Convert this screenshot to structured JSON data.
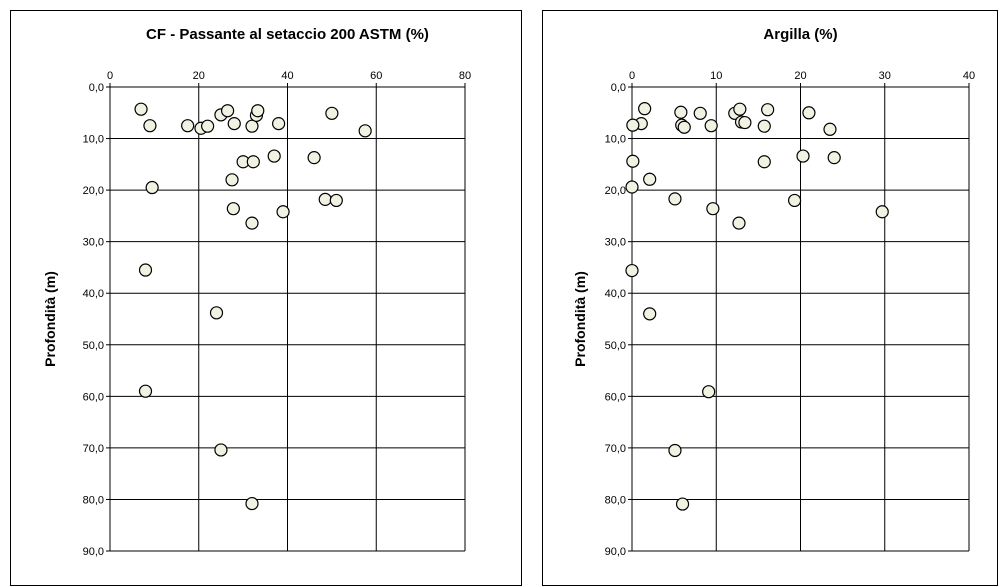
{
  "chart_data": [
    {
      "type": "scatter",
      "title": "CF - Passante al setaccio 200 ASTM (%)",
      "ylabel": "Profondità (m)",
      "xlabel": "",
      "x_axis_position": "top",
      "y_inverted": true,
      "xlim": [
        0,
        80
      ],
      "ylim": [
        0,
        90
      ],
      "xticks": [
        "0",
        "20",
        "40",
        "60",
        "80"
      ],
      "yticks": [
        "0,0",
        "10,0",
        "20,0",
        "30,0",
        "40,0",
        "50,0",
        "60,0",
        "70,0",
        "80,0",
        "90,0"
      ],
      "grid": true,
      "marker_color": "#f2f2e2",
      "points": [
        {
          "x": 7,
          "y": 4.3
        },
        {
          "x": 9,
          "y": 7.5
        },
        {
          "x": 17.5,
          "y": 7.5
        },
        {
          "x": 20.5,
          "y": 8
        },
        {
          "x": 22,
          "y": 7.6
        },
        {
          "x": 25,
          "y": 5.4
        },
        {
          "x": 26.5,
          "y": 4.6
        },
        {
          "x": 28,
          "y": 7.1
        },
        {
          "x": 32,
          "y": 7.6
        },
        {
          "x": 33,
          "y": 5.5
        },
        {
          "x": 33.3,
          "y": 4.6
        },
        {
          "x": 38,
          "y": 7.1
        },
        {
          "x": 50,
          "y": 5.1
        },
        {
          "x": 57.5,
          "y": 8.5
        },
        {
          "x": 30,
          "y": 14.5
        },
        {
          "x": 32.3,
          "y": 14.5
        },
        {
          "x": 37,
          "y": 13.4
        },
        {
          "x": 46,
          "y": 13.7
        },
        {
          "x": 27.5,
          "y": 18
        },
        {
          "x": 9.5,
          "y": 19.5
        },
        {
          "x": 27.8,
          "y": 23.6
        },
        {
          "x": 39,
          "y": 24.2
        },
        {
          "x": 48.5,
          "y": 21.8
        },
        {
          "x": 51,
          "y": 22
        },
        {
          "x": 32,
          "y": 26.4
        },
        {
          "x": 8,
          "y": 35.5
        },
        {
          "x": 24,
          "y": 43.8
        },
        {
          "x": 8,
          "y": 59
        },
        {
          "x": 25,
          "y": 70.4
        },
        {
          "x": 32,
          "y": 80.8
        }
      ]
    },
    {
      "type": "scatter",
      "title": "Argilla  (%)",
      "ylabel": "Profondità (m)",
      "xlabel": "",
      "x_axis_position": "top",
      "y_inverted": true,
      "xlim": [
        0,
        40
      ],
      "ylim": [
        0,
        90
      ],
      "xticks": [
        "0",
        "10",
        "20",
        "30",
        "40"
      ],
      "yticks": [
        "0,0",
        "10,0",
        "20,0",
        "30,0",
        "40,0",
        "50,0",
        "60,0",
        "70,0",
        "80,0",
        "90,0"
      ],
      "grid": true,
      "marker_color": "#f2f2e2",
      "points": [
        {
          "x": 1.5,
          "y": 4.2
        },
        {
          "x": 1.1,
          "y": 7.1
        },
        {
          "x": 0.1,
          "y": 7.4
        },
        {
          "x": 5.8,
          "y": 4.9
        },
        {
          "x": 5.9,
          "y": 7.4
        },
        {
          "x": 6.2,
          "y": 7.8
        },
        {
          "x": 8.1,
          "y": 5.1
        },
        {
          "x": 9.4,
          "y": 7.5
        },
        {
          "x": 12.2,
          "y": 5.1
        },
        {
          "x": 12.8,
          "y": 4.3
        },
        {
          "x": 13,
          "y": 6.8
        },
        {
          "x": 13.4,
          "y": 6.9
        },
        {
          "x": 15.7,
          "y": 7.6
        },
        {
          "x": 16.1,
          "y": 4.4
        },
        {
          "x": 21,
          "y": 5
        },
        {
          "x": 23.5,
          "y": 8.2
        },
        {
          "x": 0.1,
          "y": 14.4
        },
        {
          "x": 15.7,
          "y": 14.5
        },
        {
          "x": 20.3,
          "y": 13.4
        },
        {
          "x": 24,
          "y": 13.7
        },
        {
          "x": 2.1,
          "y": 17.9
        },
        {
          "x": 0,
          "y": 19.4
        },
        {
          "x": 5.1,
          "y": 21.7
        },
        {
          "x": 9.6,
          "y": 23.6
        },
        {
          "x": 19.3,
          "y": 22
        },
        {
          "x": 29.7,
          "y": 24.2
        },
        {
          "x": 12.7,
          "y": 26.4
        },
        {
          "x": 0,
          "y": 35.6
        },
        {
          "x": 2.1,
          "y": 44
        },
        {
          "x": 9.1,
          "y": 59.1
        },
        {
          "x": 5.1,
          "y": 70.5
        },
        {
          "x": 6,
          "y": 80.9
        }
      ]
    }
  ]
}
